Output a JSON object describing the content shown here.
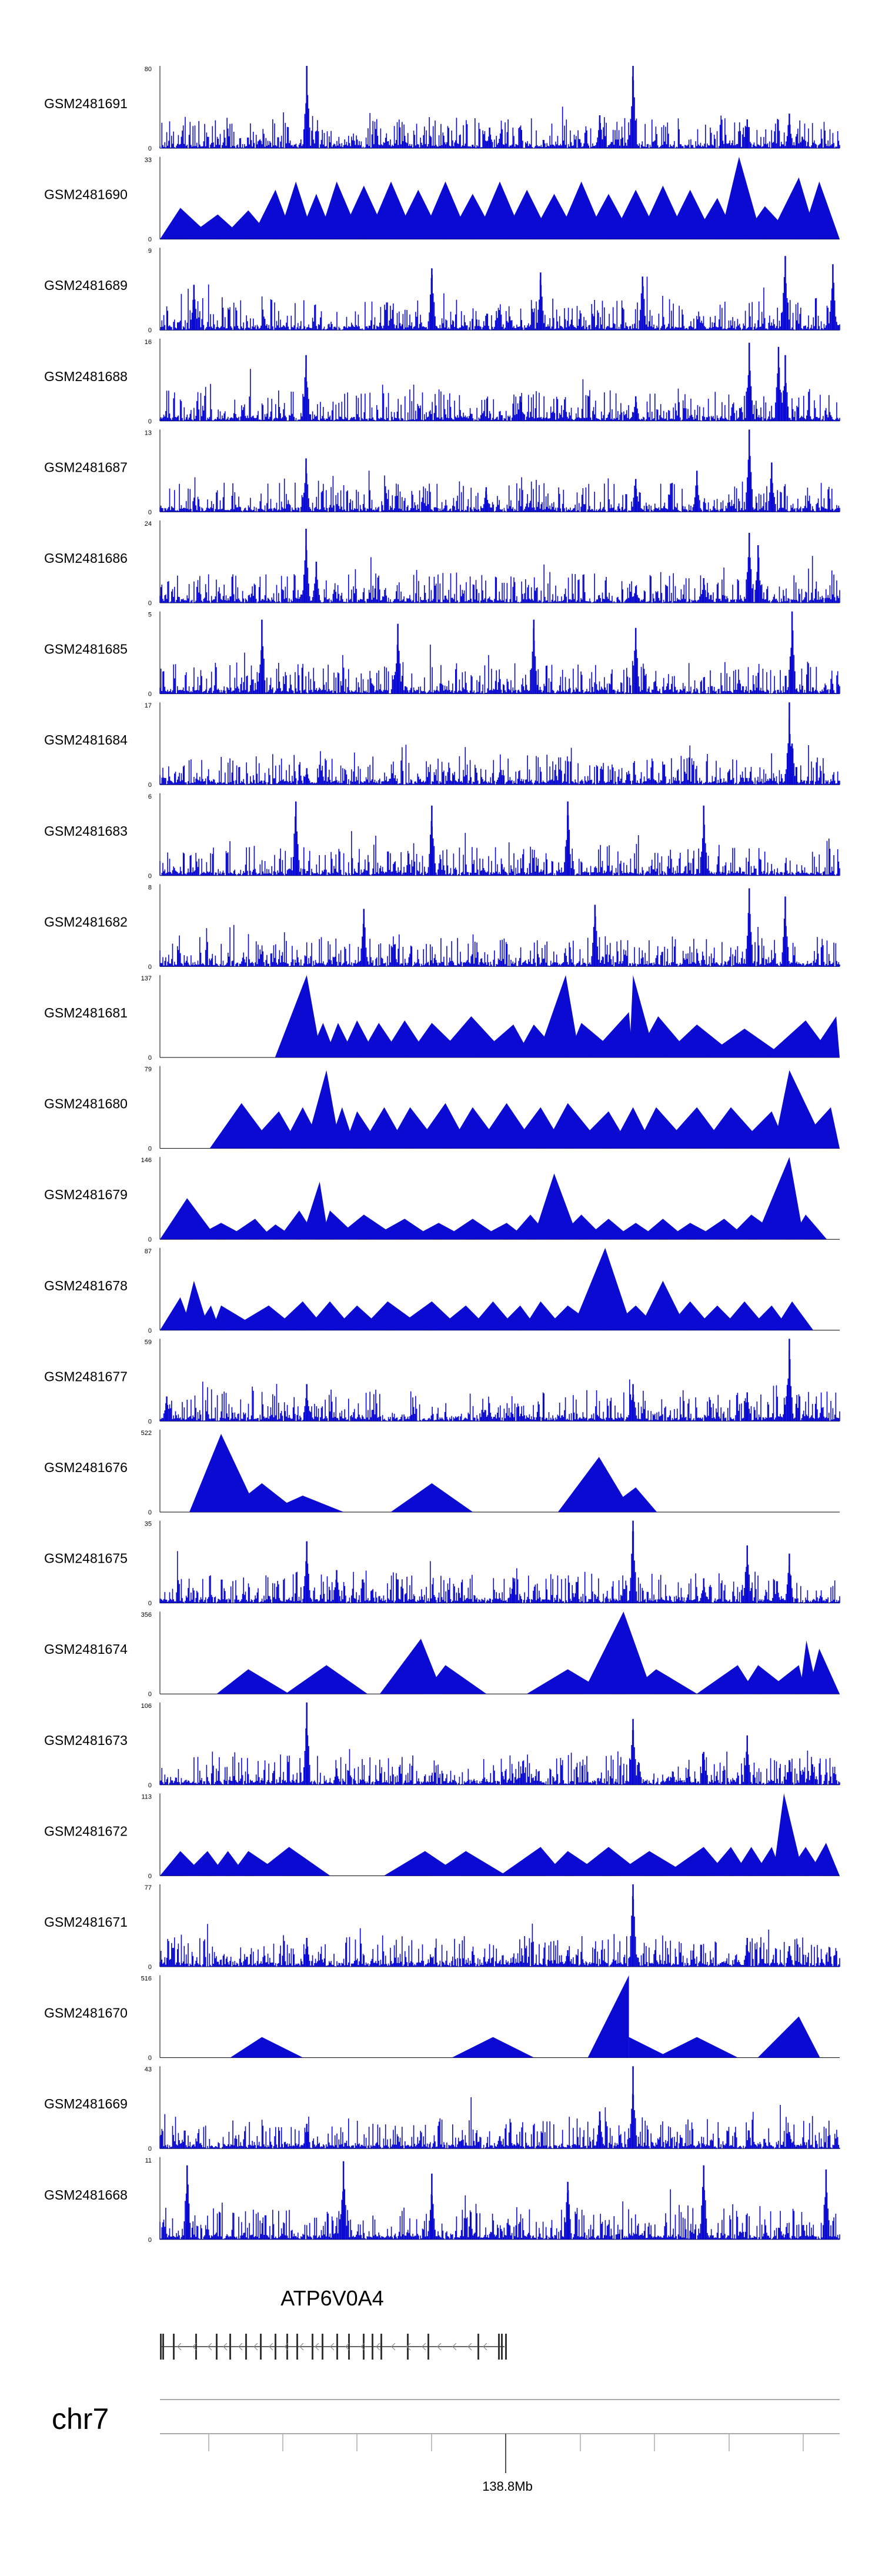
{
  "chart_data": {
    "type": "area",
    "title": "",
    "region": {
      "chromosome": "chr7",
      "axis_label": "138.8Mb"
    },
    "colors": {
      "signal": "#0a0ad2",
      "baseline": "#000000",
      "axis": "#aaaaaa",
      "text": "#000000",
      "gene": "#333333"
    },
    "tracks": [
      {
        "name": "GSM2481691",
        "ymax": 80,
        "ymin": 0,
        "style": "dense",
        "peaks": [
          [
            0.216,
            1.0
          ],
          [
            0.696,
            1.0
          ],
          [
            0.647,
            0.4
          ],
          [
            0.864,
            0.35
          ],
          [
            0.926,
            0.42
          ],
          [
            0.485,
            0.25
          ],
          [
            0.36,
            0.15
          ],
          [
            0.945,
            0.14
          ]
        ]
      },
      {
        "name": "GSM2481690",
        "ymax": 33,
        "ymin": 0,
        "style": "triangles",
        "peaks": [
          [
            0.03,
            0.38
          ],
          [
            0.085,
            0.3
          ],
          [
            0.13,
            0.35
          ],
          [
            0.17,
            0.6
          ],
          [
            0.2,
            0.7
          ],
          [
            0.23,
            0.55
          ],
          [
            0.26,
            0.7
          ],
          [
            0.3,
            0.65
          ],
          [
            0.34,
            0.7
          ],
          [
            0.38,
            0.6
          ],
          [
            0.42,
            0.7
          ],
          [
            0.46,
            0.55
          ],
          [
            0.5,
            0.7
          ],
          [
            0.54,
            0.6
          ],
          [
            0.58,
            0.55
          ],
          [
            0.62,
            0.7
          ],
          [
            0.66,
            0.55
          ],
          [
            0.7,
            0.6
          ],
          [
            0.74,
            0.65
          ],
          [
            0.78,
            0.6
          ],
          [
            0.82,
            0.5
          ],
          [
            0.852,
            1.0
          ],
          [
            0.89,
            0.4
          ],
          [
            0.94,
            0.75
          ],
          [
            0.97,
            0.7
          ]
        ]
      },
      {
        "name": "GSM2481689",
        "ymax": 9,
        "ymin": 0,
        "style": "dense",
        "peaks": [
          [
            0.4,
            0.75
          ],
          [
            0.56,
            0.7
          ],
          [
            0.71,
            0.65
          ],
          [
            0.92,
            0.9
          ],
          [
            0.99,
            0.8
          ],
          [
            0.05,
            0.55
          ]
        ]
      },
      {
        "name": "GSM2481688",
        "ymax": 16,
        "ymin": 0,
        "style": "dense",
        "peaks": [
          [
            0.215,
            0.8
          ],
          [
            0.867,
            0.95
          ],
          [
            0.91,
            0.9
          ],
          [
            0.92,
            0.8
          ],
          [
            0.53,
            0.3
          ],
          [
            0.7,
            0.3
          ]
        ]
      },
      {
        "name": "GSM2481687",
        "ymax": 13,
        "ymin": 0,
        "style": "dense",
        "peaks": [
          [
            0.215,
            0.65
          ],
          [
            0.867,
            1.0
          ],
          [
            0.7,
            0.4
          ],
          [
            0.9,
            0.6
          ],
          [
            0.79,
            0.5
          ],
          [
            0.48,
            0.3
          ]
        ]
      },
      {
        "name": "GSM2481686",
        "ymax": 24,
        "ymin": 0,
        "style": "dense",
        "peaks": [
          [
            0.215,
            0.9
          ],
          [
            0.23,
            0.5
          ],
          [
            0.867,
            0.85
          ],
          [
            0.88,
            0.7
          ],
          [
            0.8,
            0.3
          ],
          [
            0.7,
            0.2
          ]
        ]
      },
      {
        "name": "GSM2481685",
        "ymax": 5,
        "ymin": 0,
        "style": "dense",
        "peaks": [
          [
            0.15,
            0.9
          ],
          [
            0.35,
            0.85
          ],
          [
            0.55,
            0.9
          ],
          [
            0.93,
            1.0
          ],
          [
            0.7,
            0.8
          ]
        ]
      },
      {
        "name": "GSM2481684",
        "ymax": 17,
        "ymin": 0,
        "style": "dense",
        "peaks": [
          [
            0.926,
            1.0
          ],
          [
            0.93,
            0.5
          ],
          [
            0.216,
            0.2
          ],
          [
            0.5,
            0.15
          ]
        ]
      },
      {
        "name": "GSM2481683",
        "ymax": 6,
        "ymin": 0,
        "style": "dense",
        "peaks": [
          [
            0.2,
            0.9
          ],
          [
            0.4,
            0.85
          ],
          [
            0.6,
            0.9
          ],
          [
            0.8,
            0.85
          ]
        ]
      },
      {
        "name": "GSM2481682",
        "ymax": 8,
        "ymin": 0,
        "style": "dense",
        "peaks": [
          [
            0.867,
            0.95
          ],
          [
            0.92,
            0.85
          ],
          [
            0.3,
            0.7
          ],
          [
            0.64,
            0.75
          ]
        ]
      },
      {
        "name": "GSM2481681",
        "ymax": 137,
        "ymin": 0,
        "style": "triangles",
        "peaks": [
          [
            0.216,
            1.0
          ],
          [
            0.24,
            0.42
          ],
          [
            0.262,
            0.42
          ],
          [
            0.29,
            0.45
          ],
          [
            0.322,
            0.42
          ],
          [
            0.36,
            0.45
          ],
          [
            0.4,
            0.42
          ],
          [
            0.458,
            0.5
          ],
          [
            0.52,
            0.4
          ],
          [
            0.55,
            0.4
          ],
          [
            0.597,
            1.0
          ],
          [
            0.62,
            0.42
          ],
          [
            0.69,
            0.55
          ],
          [
            0.696,
            1.0
          ],
          [
            0.733,
            0.5
          ],
          [
            0.79,
            0.4
          ],
          [
            0.86,
            0.35
          ],
          [
            0.95,
            0.45
          ],
          [
            0.995,
            0.5
          ]
        ]
      },
      {
        "name": "GSM2481680",
        "ymax": 79,
        "ymin": 0,
        "style": "triangles",
        "peaks": [
          [
            0.12,
            0.55
          ],
          [
            0.175,
            0.45
          ],
          [
            0.21,
            0.5
          ],
          [
            0.245,
            0.95
          ],
          [
            0.268,
            0.5
          ],
          [
            0.29,
            0.45
          ],
          [
            0.33,
            0.5
          ],
          [
            0.368,
            0.5
          ],
          [
            0.42,
            0.55
          ],
          [
            0.46,
            0.5
          ],
          [
            0.51,
            0.55
          ],
          [
            0.56,
            0.5
          ],
          [
            0.6,
            0.55
          ],
          [
            0.66,
            0.45
          ],
          [
            0.696,
            0.5
          ],
          [
            0.73,
            0.5
          ],
          [
            0.79,
            0.5
          ],
          [
            0.84,
            0.5
          ],
          [
            0.9,
            0.45
          ],
          [
            0.926,
            0.95
          ],
          [
            0.987,
            0.5
          ]
        ]
      },
      {
        "name": "GSM2481679",
        "ymax": 146,
        "ymin": 0,
        "style": "triangles",
        "peaks": [
          [
            0.04,
            0.5
          ],
          [
            0.09,
            0.2
          ],
          [
            0.14,
            0.25
          ],
          [
            0.17,
            0.18
          ],
          [
            0.205,
            0.35
          ],
          [
            0.235,
            0.7
          ],
          [
            0.25,
            0.35
          ],
          [
            0.3,
            0.3
          ],
          [
            0.36,
            0.25
          ],
          [
            0.41,
            0.2
          ],
          [
            0.46,
            0.25
          ],
          [
            0.51,
            0.2
          ],
          [
            0.545,
            0.3
          ],
          [
            0.58,
            0.8
          ],
          [
            0.62,
            0.3
          ],
          [
            0.66,
            0.25
          ],
          [
            0.7,
            0.2
          ],
          [
            0.74,
            0.25
          ],
          [
            0.78,
            0.2
          ],
          [
            0.83,
            0.25
          ],
          [
            0.87,
            0.3
          ],
          [
            0.926,
            1.0
          ],
          [
            0.95,
            0.3
          ]
        ]
      },
      {
        "name": "GSM2481678",
        "ymax": 87,
        "ymin": 0,
        "style": "triangles",
        "peaks": [
          [
            0.03,
            0.4
          ],
          [
            0.05,
            0.6
          ],
          [
            0.075,
            0.3
          ],
          [
            0.09,
            0.3
          ],
          [
            0.16,
            0.3
          ],
          [
            0.21,
            0.35
          ],
          [
            0.25,
            0.35
          ],
          [
            0.29,
            0.3
          ],
          [
            0.335,
            0.35
          ],
          [
            0.4,
            0.35
          ],
          [
            0.45,
            0.3
          ],
          [
            0.49,
            0.35
          ],
          [
            0.53,
            0.3
          ],
          [
            0.56,
            0.35
          ],
          [
            0.6,
            0.3
          ],
          [
            0.655,
            1.0
          ],
          [
            0.7,
            0.3
          ],
          [
            0.74,
            0.6
          ],
          [
            0.78,
            0.35
          ],
          [
            0.82,
            0.3
          ],
          [
            0.86,
            0.35
          ],
          [
            0.9,
            0.3
          ],
          [
            0.93,
            0.35
          ]
        ]
      },
      {
        "name": "GSM2481677",
        "ymax": 59,
        "ymin": 0,
        "style": "dense",
        "peaks": [
          [
            0.926,
            1.0
          ],
          [
            0.696,
            0.45
          ],
          [
            0.216,
            0.45
          ],
          [
            0.864,
            0.35
          ],
          [
            0.92,
            0.2
          ],
          [
            0.01,
            0.3
          ]
        ]
      },
      {
        "name": "GSM2481676",
        "ymax": 522,
        "ymin": 0,
        "style": "triangles",
        "peaks": [
          [
            0.09,
            0.95
          ],
          [
            0.15,
            0.35
          ],
          [
            0.21,
            0.2
          ],
          [
            0.4,
            0.35
          ],
          [
            0.646,
            0.67
          ],
          [
            0.7,
            0.3
          ]
        ]
      },
      {
        "name": "GSM2481675",
        "ymax": 35,
        "ymin": 0,
        "style": "dense",
        "peaks": [
          [
            0.696,
            1.0
          ],
          [
            0.216,
            0.75
          ],
          [
            0.864,
            0.7
          ],
          [
            0.926,
            0.6
          ],
          [
            0.26,
            0.4
          ],
          [
            0.52,
            0.3
          ],
          [
            0.8,
            0.3
          ]
        ]
      },
      {
        "name": "GSM2481674",
        "ymax": 356,
        "ymin": 0,
        "style": "triangles",
        "peaks": [
          [
            0.13,
            0.3
          ],
          [
            0.245,
            0.35
          ],
          [
            0.384,
            0.67
          ],
          [
            0.42,
            0.35
          ],
          [
            0.6,
            0.3
          ],
          [
            0.682,
            1.0
          ],
          [
            0.73,
            0.3
          ],
          [
            0.85,
            0.35
          ],
          [
            0.88,
            0.35
          ],
          [
            0.94,
            0.35
          ],
          [
            0.951,
            0.65
          ],
          [
            0.97,
            0.55
          ]
        ]
      },
      {
        "name": "GSM2481673",
        "ymax": 106,
        "ymin": 0,
        "style": "dense",
        "peaks": [
          [
            0.216,
            1.0
          ],
          [
            0.696,
            0.8
          ],
          [
            0.864,
            0.6
          ],
          [
            0.8,
            0.4
          ],
          [
            0.926,
            0.3
          ],
          [
            0.96,
            0.25
          ],
          [
            0.26,
            0.2
          ]
        ]
      },
      {
        "name": "GSM2481672",
        "ymax": 113,
        "ymin": 0,
        "style": "triangles",
        "peaks": [
          [
            0.03,
            0.3
          ],
          [
            0.07,
            0.3
          ],
          [
            0.1,
            0.3
          ],
          [
            0.13,
            0.3
          ],
          [
            0.19,
            0.35
          ],
          [
            0.39,
            0.3
          ],
          [
            0.45,
            0.3
          ],
          [
            0.56,
            0.35
          ],
          [
            0.6,
            0.3
          ],
          [
            0.66,
            0.35
          ],
          [
            0.72,
            0.3
          ],
          [
            0.8,
            0.35
          ],
          [
            0.84,
            0.35
          ],
          [
            0.87,
            0.35
          ],
          [
            0.9,
            0.35
          ],
          [
            0.918,
            1.0
          ],
          [
            0.95,
            0.35
          ],
          [
            0.98,
            0.4
          ]
        ]
      },
      {
        "name": "GSM2481671",
        "ymax": 77,
        "ymin": 0,
        "style": "dense",
        "peaks": [
          [
            0.696,
            1.0
          ],
          [
            0.216,
            0.35
          ],
          [
            0.864,
            0.35
          ],
          [
            0.926,
            0.25
          ],
          [
            0.6,
            0.2
          ]
        ]
      },
      {
        "name": "GSM2481670",
        "ymax": 516,
        "ymin": 0,
        "style": "triangles",
        "peaks": [
          [
            0.15,
            0.25
          ],
          [
            0.49,
            0.25
          ],
          [
            0.69,
            1.0
          ],
          [
            0.69,
            0.25
          ],
          [
            0.79,
            0.25
          ],
          [
            0.94,
            0.5
          ]
        ]
      },
      {
        "name": "GSM2481669",
        "ymax": 43,
        "ymin": 0,
        "style": "dense",
        "peaks": [
          [
            0.696,
            1.0
          ],
          [
            0.647,
            0.45
          ],
          [
            0.216,
            0.3
          ],
          [
            0.5,
            0.15
          ],
          [
            0.926,
            0.2
          ]
        ]
      },
      {
        "name": "GSM2481668",
        "ymax": 11,
        "ymin": 0,
        "style": "dense",
        "peaks": [
          [
            0.27,
            0.95
          ],
          [
            0.04,
            0.9
          ],
          [
            0.4,
            0.8
          ],
          [
            0.6,
            0.7
          ],
          [
            0.8,
            0.9
          ],
          [
            0.98,
            0.85
          ]
        ]
      }
    ],
    "gene": {
      "name": "ATP6V0A4",
      "strand": "-",
      "start_frac": 0.0,
      "end_frac": 0.5
    }
  }
}
